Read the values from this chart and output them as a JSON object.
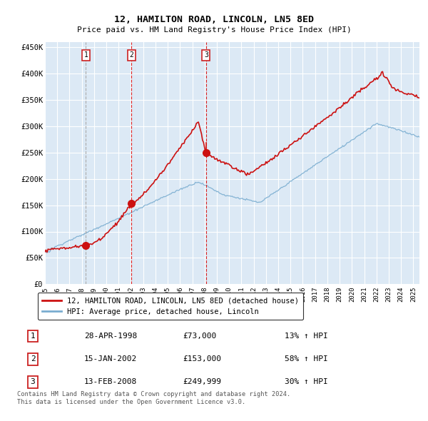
{
  "title": "12, HAMILTON ROAD, LINCOLN, LN5 8ED",
  "subtitle": "Price paid vs. HM Land Registry's House Price Index (HPI)",
  "background_color": "#ffffff",
  "plot_bg_color": "#dce9f5",
  "grid_color": "#ffffff",
  "ylim": [
    0,
    460000
  ],
  "yticks": [
    0,
    50000,
    100000,
    150000,
    200000,
    250000,
    300000,
    350000,
    400000,
    450000
  ],
  "ytick_labels": [
    "£0",
    "£50K",
    "£100K",
    "£150K",
    "£200K",
    "£250K",
    "£300K",
    "£350K",
    "£400K",
    "£450K"
  ],
  "sale_years": [
    1998.33,
    2002.04,
    2008.12
  ],
  "sale_prices": [
    73000,
    153000,
    249999
  ],
  "sale_labels": [
    "1",
    "2",
    "3"
  ],
  "vline1_color": "#aaaaaa",
  "vline23_color": "#dd2222",
  "red_line_color": "#cc1111",
  "blue_line_color": "#7aadd0",
  "dot_color": "#cc1111",
  "legend_label_red": "12, HAMILTON ROAD, LINCOLN, LN5 8ED (detached house)",
  "legend_label_blue": "HPI: Average price, detached house, Lincoln",
  "table_rows": [
    [
      "1",
      "28-APR-1998",
      "£73,000",
      "13% ↑ HPI"
    ],
    [
      "2",
      "15-JAN-2002",
      "£153,000",
      "58% ↑ HPI"
    ],
    [
      "3",
      "13-FEB-2008",
      "£249,999",
      "30% ↑ HPI"
    ]
  ],
  "footer": "Contains HM Land Registry data © Crown copyright and database right 2024.\nThis data is licensed under the Open Government Licence v3.0.",
  "x_start_year": 1995,
  "x_end_year": 2025
}
